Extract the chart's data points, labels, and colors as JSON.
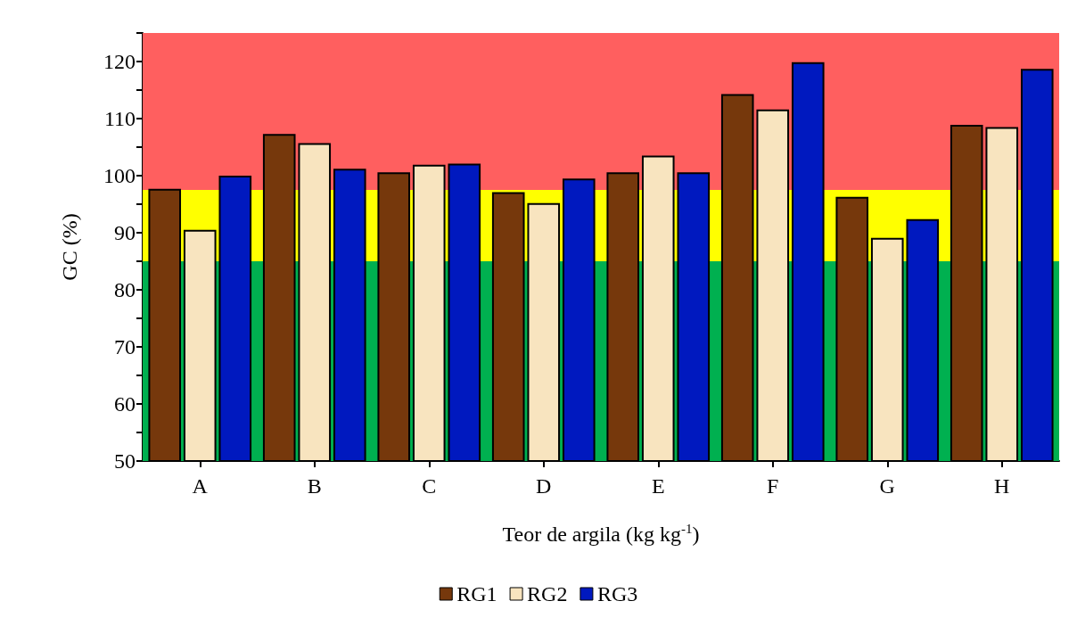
{
  "chart_data": {
    "type": "bar",
    "xlabel": "Teor de argila (kg kg$^{-1}$)",
    "ylabel": "GC (%)",
    "categories": [
      "A",
      "B",
      "C",
      "D",
      "E",
      "F",
      "G",
      "H"
    ],
    "series": [
      {
        "name": "RG1",
        "color": "#76380c",
        "values": [
          97.7,
          107.3,
          100.6,
          97.1,
          100.6,
          114.3,
          96.3,
          108.9
        ]
      },
      {
        "name": "RG2",
        "color": "#f8e4bf",
        "values": [
          90.5,
          105.7,
          101.9,
          95.2,
          103.5,
          111.6,
          89.1,
          108.5
        ]
      },
      {
        "name": "RG3",
        "color": "#0019bf",
        "values": [
          100,
          101.2,
          102.1,
          99.5,
          100.6,
          119.9,
          92.4,
          118.7
        ]
      }
    ],
    "ylim": [
      50,
      125
    ],
    "yticks": [
      50,
      {
        "value": 55,
        "label": null
      },
      60,
      {
        "value": 65,
        "label": null
      },
      70,
      {
        "value": 75,
        "label": null
      },
      80,
      {
        "value": 85,
        "label": null
      },
      90,
      {
        "value": 95,
        "label": null
      },
      100,
      {
        "value": 105,
        "label": null
      },
      110,
      {
        "value": 115,
        "label": null
      },
      120,
      {
        "value": 125,
        "label": null
      }
    ],
    "bands": [
      {
        "axis": "y",
        "from": 50,
        "to": 85,
        "label": null,
        "color": "#00b050"
      },
      {
        "axis": "y",
        "from": 85,
        "to": 97.5,
        "label": null,
        "color": "#ffff00"
      },
      {
        "axis": "y",
        "from": 97.5,
        "to": 125,
        "label": null,
        "color": "#ff5f5f"
      }
    ],
    "grid": false,
    "legend": "bottom"
  }
}
